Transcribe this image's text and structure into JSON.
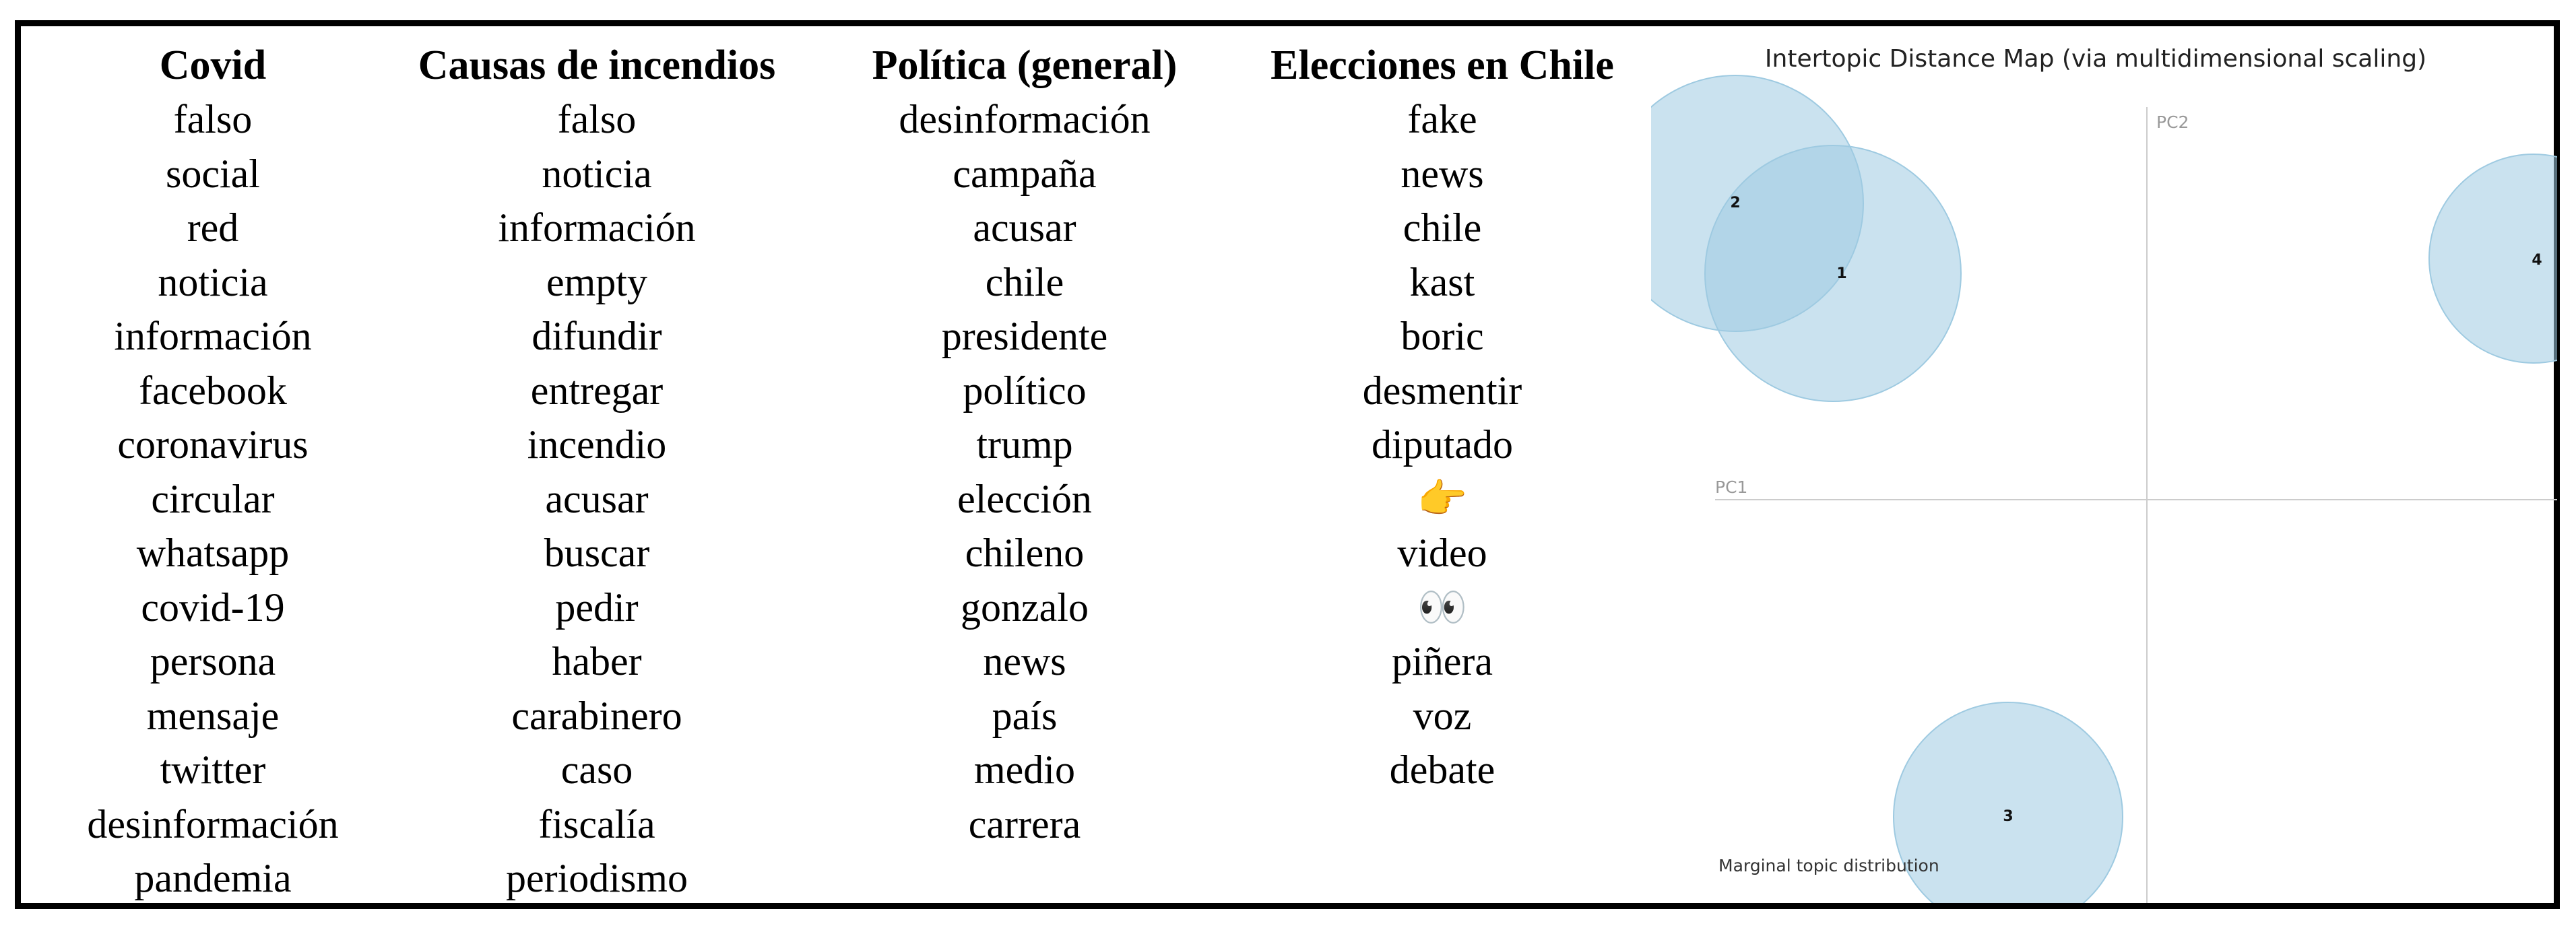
{
  "topics": [
    {
      "title": "Covid",
      "words": [
        "falso",
        "social",
        "red",
        "noticia",
        "información",
        "facebook",
        "coronavirus",
        "circular",
        "whatsapp",
        "covid-19",
        "persona",
        "mensaje",
        "twitter",
        "desinformación",
        "pandemia"
      ]
    },
    {
      "title": "Causas de incendios",
      "words": [
        "falso",
        "noticia",
        "información",
        "empty",
        "difundir",
        "entregar",
        "incendio",
        "acusar",
        "buscar",
        "pedir",
        "haber",
        "carabinero",
        "caso",
        "fiscalía",
        "periodismo"
      ]
    },
    {
      "title": "Política (general)",
      "words": [
        "desinformación",
        "campaña",
        "acusar",
        "chile",
        "presidente",
        "político",
        "trump",
        "elección",
        "chileno",
        "gonzalo",
        "news",
        "país",
        "medio",
        "carrera"
      ]
    },
    {
      "title": "Elecciones en Chile",
      "words": [
        "fake",
        "news",
        "chile",
        "kast",
        "boric",
        "desmentir",
        "diputado",
        "👉",
        "video",
        "👀",
        "piñera",
        "voz",
        "debate"
      ]
    }
  ],
  "intertopic_map": {
    "title": "Intertopic Distance Map (via multidimensional scaling)",
    "pc1_label": "PC1",
    "pc2_label": "PC2",
    "marginal_label": "Marginal topic distribution",
    "bubble_color": "#9ecae1",
    "bubbles": [
      {
        "id": "1",
        "label": "1"
      },
      {
        "id": "2",
        "label": "2"
      },
      {
        "id": "3",
        "label": "3"
      },
      {
        "id": "4",
        "label": "4"
      }
    ]
  }
}
